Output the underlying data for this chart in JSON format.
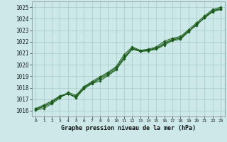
{
  "title": "Graphe pression niveau de la mer (hPa)",
  "background_color": "#cce8e8",
  "grid_color": "#a8c8c8",
  "line_color": "#1a5c1a",
  "marker_color": "#1a5c1a",
  "xlim": [
    -0.5,
    23.5
  ],
  "ylim": [
    1015.5,
    1025.5
  ],
  "xticks": [
    0,
    1,
    2,
    3,
    4,
    5,
    6,
    7,
    8,
    9,
    10,
    11,
    12,
    13,
    14,
    15,
    16,
    17,
    18,
    19,
    20,
    21,
    22,
    23
  ],
  "yticks": [
    1016,
    1017,
    1018,
    1019,
    1020,
    1021,
    1022,
    1023,
    1024,
    1025
  ],
  "series": [
    [
      1016.2,
      1016.5,
      1016.85,
      1017.3,
      1017.5,
      1017.1,
      1017.9,
      1018.35,
      1018.6,
      1019.05,
      1019.55,
      1020.5,
      1021.35,
      1021.15,
      1021.2,
      1021.35,
      1021.7,
      1022.1,
      1022.2,
      1022.85,
      1023.5,
      1024.05,
      1024.6,
      1024.8
    ],
    [
      1016.1,
      1016.35,
      1016.7,
      1017.2,
      1017.45,
      1017.25,
      1018.05,
      1018.45,
      1018.85,
      1019.25,
      1019.75,
      1020.7,
      1021.45,
      1021.2,
      1021.3,
      1021.45,
      1021.9,
      1022.2,
      1022.35,
      1022.95,
      1023.4,
      1024.15,
      1024.7,
      1024.9
    ],
    [
      1016.05,
      1016.2,
      1016.6,
      1017.1,
      1017.6,
      1017.35,
      1018.1,
      1018.55,
      1018.95,
      1019.35,
      1019.85,
      1020.9,
      1021.55,
      1021.25,
      1021.35,
      1021.55,
      1022.05,
      1022.3,
      1022.45,
      1023.05,
      1023.65,
      1024.25,
      1024.8,
      1025.0
    ],
    [
      1016.15,
      1016.4,
      1016.75,
      1017.25,
      1017.5,
      1017.2,
      1018.0,
      1018.4,
      1018.75,
      1019.15,
      1019.65,
      1020.6,
      1021.4,
      1021.15,
      1021.25,
      1021.4,
      1021.8,
      1022.15,
      1022.3,
      1022.9,
      1023.55,
      1024.1,
      1024.65,
      1024.85
    ]
  ]
}
